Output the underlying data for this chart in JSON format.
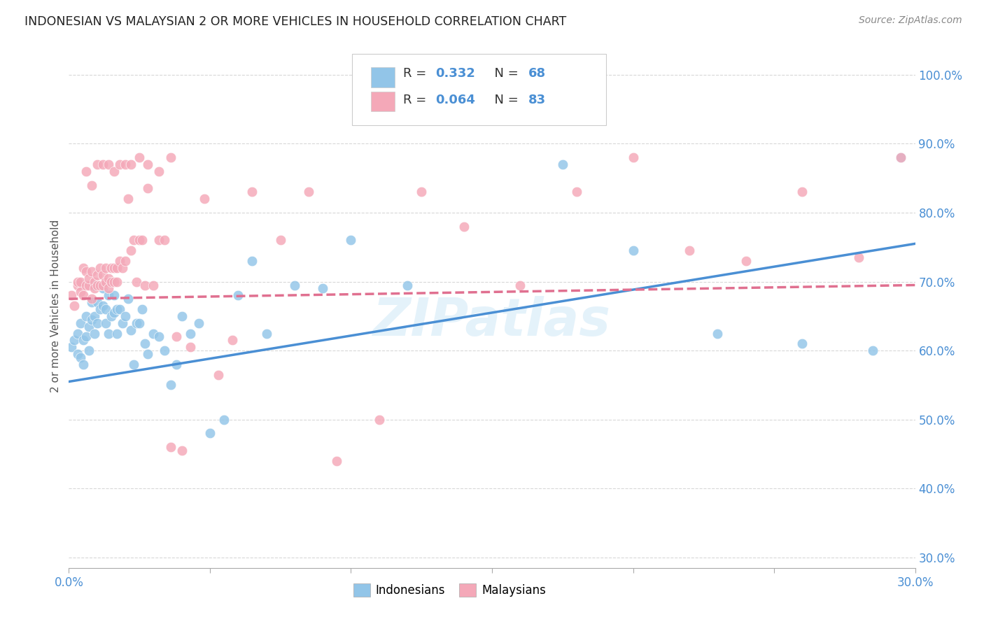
{
  "title": "INDONESIAN VS MALAYSIAN 2 OR MORE VEHICLES IN HOUSEHOLD CORRELATION CHART",
  "source": "Source: ZipAtlas.com",
  "ylabel": "2 or more Vehicles in Household",
  "legend_label1": "Indonesians",
  "legend_label2": "Malaysians",
  "R1": "0.332",
  "N1": "68",
  "R2": "0.064",
  "N2": "83",
  "color_indonesian": "#92c5e8",
  "color_malaysian": "#f4a8b8",
  "color_line1": "#4a8fd4",
  "color_line2": "#e07090",
  "color_title": "#222222",
  "color_source": "#888888",
  "color_axis_blue": "#4a8fd4",
  "color_legend_R": "#4a8fd4",
  "color_legend_N": "#4a8fd4",
  "color_grid": "#d8d8d8",
  "watermark": "ZIPatlas",
  "x_min": 0.0,
  "x_max": 0.3,
  "y_min": 0.285,
  "y_max": 1.045,
  "indo_line_y0": 0.555,
  "indo_line_y1": 0.755,
  "malay_line_y0": 0.675,
  "malay_line_y1": 0.695,
  "indonesian_x": [
    0.001,
    0.002,
    0.003,
    0.003,
    0.004,
    0.004,
    0.005,
    0.005,
    0.006,
    0.006,
    0.007,
    0.007,
    0.008,
    0.008,
    0.009,
    0.009,
    0.009,
    0.01,
    0.01,
    0.011,
    0.011,
    0.012,
    0.012,
    0.013,
    0.013,
    0.014,
    0.014,
    0.015,
    0.015,
    0.016,
    0.016,
    0.017,
    0.017,
    0.018,
    0.019,
    0.02,
    0.021,
    0.022,
    0.023,
    0.024,
    0.025,
    0.026,
    0.027,
    0.028,
    0.03,
    0.032,
    0.034,
    0.036,
    0.038,
    0.04,
    0.043,
    0.046,
    0.05,
    0.055,
    0.06,
    0.065,
    0.07,
    0.08,
    0.09,
    0.1,
    0.12,
    0.15,
    0.175,
    0.2,
    0.23,
    0.26,
    0.285,
    0.295
  ],
  "indonesian_y": [
    0.605,
    0.615,
    0.595,
    0.625,
    0.64,
    0.59,
    0.58,
    0.615,
    0.62,
    0.65,
    0.635,
    0.6,
    0.67,
    0.645,
    0.65,
    0.695,
    0.625,
    0.67,
    0.64,
    0.695,
    0.66,
    0.665,
    0.69,
    0.64,
    0.66,
    0.68,
    0.625,
    0.7,
    0.65,
    0.68,
    0.655,
    0.66,
    0.625,
    0.66,
    0.64,
    0.65,
    0.675,
    0.63,
    0.58,
    0.64,
    0.64,
    0.66,
    0.61,
    0.595,
    0.625,
    0.62,
    0.6,
    0.55,
    0.58,
    0.65,
    0.625,
    0.64,
    0.48,
    0.5,
    0.68,
    0.73,
    0.625,
    0.695,
    0.69,
    0.76,
    0.695,
    0.97,
    0.87,
    0.745,
    0.625,
    0.61,
    0.6,
    0.88
  ],
  "malaysian_x": [
    0.001,
    0.002,
    0.003,
    0.003,
    0.004,
    0.004,
    0.005,
    0.005,
    0.006,
    0.006,
    0.007,
    0.007,
    0.008,
    0.008,
    0.009,
    0.009,
    0.01,
    0.01,
    0.011,
    0.011,
    0.012,
    0.012,
    0.013,
    0.013,
    0.014,
    0.014,
    0.015,
    0.015,
    0.016,
    0.016,
    0.017,
    0.017,
    0.018,
    0.019,
    0.02,
    0.021,
    0.022,
    0.023,
    0.024,
    0.025,
    0.026,
    0.027,
    0.028,
    0.03,
    0.032,
    0.034,
    0.036,
    0.038,
    0.04,
    0.043,
    0.048,
    0.053,
    0.058,
    0.065,
    0.075,
    0.085,
    0.095,
    0.11,
    0.125,
    0.14,
    0.16,
    0.18,
    0.2,
    0.22,
    0.24,
    0.26,
    0.28,
    0.295,
    0.006,
    0.008,
    0.01,
    0.012,
    0.014,
    0.016,
    0.018,
    0.02,
    0.022,
    0.025,
    0.028,
    0.032,
    0.036
  ],
  "malaysian_y": [
    0.68,
    0.665,
    0.695,
    0.7,
    0.685,
    0.7,
    0.72,
    0.68,
    0.715,
    0.695,
    0.695,
    0.705,
    0.715,
    0.675,
    0.7,
    0.69,
    0.71,
    0.695,
    0.72,
    0.695,
    0.71,
    0.695,
    0.72,
    0.7,
    0.705,
    0.69,
    0.72,
    0.7,
    0.72,
    0.7,
    0.72,
    0.7,
    0.73,
    0.72,
    0.73,
    0.82,
    0.745,
    0.76,
    0.7,
    0.76,
    0.76,
    0.695,
    0.835,
    0.695,
    0.76,
    0.76,
    0.46,
    0.62,
    0.455,
    0.605,
    0.82,
    0.565,
    0.615,
    0.83,
    0.76,
    0.83,
    0.44,
    0.5,
    0.83,
    0.78,
    0.695,
    0.83,
    0.88,
    0.745,
    0.73,
    0.83,
    0.735,
    0.88,
    0.86,
    0.84,
    0.87,
    0.87,
    0.87,
    0.86,
    0.87,
    0.87,
    0.87,
    0.88,
    0.87,
    0.86,
    0.88
  ]
}
